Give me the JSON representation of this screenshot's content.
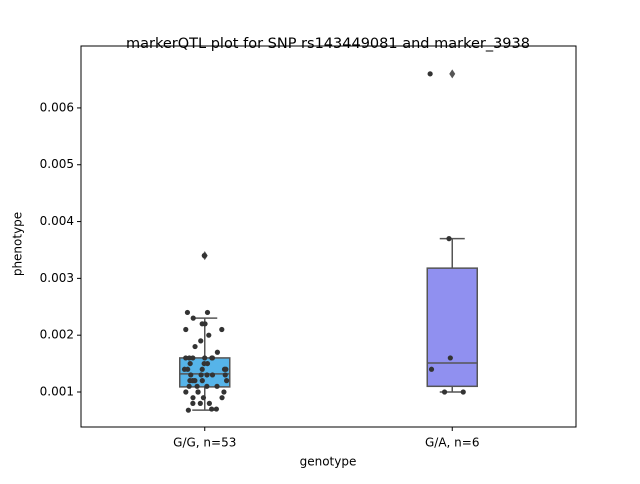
{
  "chart_data": {
    "type": "box",
    "title": "markerQTL plot for SNP rs143449081 and marker_3938",
    "x_label": "genotype",
    "y_label": "phenotype",
    "categories": [
      "G/G, n=53",
      "G/A, n=6"
    ],
    "ylim": [
      0.000384,
      0.00709
    ],
    "yticks": [
      0.001,
      0.002,
      0.003,
      0.004,
      0.005,
      0.006
    ],
    "boxes": [
      {
        "color": "#56b4e9",
        "min": 0.00068,
        "q1": 0.00109,
        "median": 0.00132,
        "q3": 0.0016,
        "max": 0.0023,
        "outliers": [
          0.0034
        ],
        "points": [
          0.0034,
          0.0024,
          0.0024,
          0.0023,
          0.0022,
          0.0022,
          0.0021,
          0.0021,
          0.002,
          0.0019,
          0.0018,
          0.0017,
          0.0016,
          0.0016,
          0.0016,
          0.0016,
          0.0016,
          0.0016,
          0.0015,
          0.0015,
          0.0015,
          0.0014,
          0.0014,
          0.0014,
          0.0014,
          0.0014,
          0.0013,
          0.0013,
          0.0013,
          0.0013,
          0.0013,
          0.0012,
          0.0012,
          0.0012,
          0.0012,
          0.0012,
          0.0011,
          0.0011,
          0.0011,
          0.0011,
          0.001,
          0.001,
          0.001,
          0.001,
          0.0009,
          0.0009,
          0.0009,
          0.0008,
          0.0008,
          0.0008,
          0.0007,
          0.0007,
          0.00068
        ]
      },
      {
        "color": "#9090f0",
        "min": 0.001,
        "q1": 0.0011,
        "median": 0.00151,
        "q3": 0.00318,
        "max": 0.0037,
        "outliers": [
          0.0066
        ],
        "points": [
          0.0066,
          0.0037,
          0.0016,
          0.0014,
          0.001,
          0.001
        ]
      }
    ]
  }
}
